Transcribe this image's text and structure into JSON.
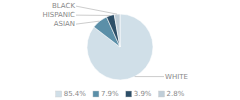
{
  "chart_data": {
    "type": "pie",
    "categories": [
      "WHITE",
      "ASIAN",
      "HISPANIC",
      "BLACK"
    ],
    "values": [
      85.4,
      7.9,
      3.9,
      2.8
    ],
    "value_labels": [
      "85.4%",
      "7.9%",
      "3.9%",
      "2.8%"
    ],
    "colors": [
      "#d0dfe8",
      "#5b8fa8",
      "#2d4f68",
      "#c0ced8"
    ],
    "legend": "bottom"
  }
}
